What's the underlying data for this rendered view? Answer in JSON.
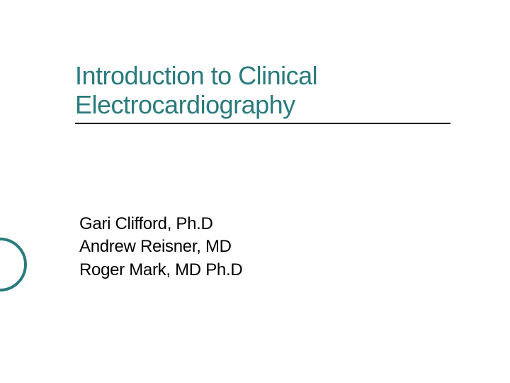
{
  "slide": {
    "title_line1": "Introduction to Clinical",
    "title_line2": "Electrocardiography",
    "title_color": "#2a7b7d",
    "title_fontsize": 36,
    "underline_color": "#000000",
    "authors": [
      "Gari Clifford, Ph.D",
      "Andrew Reisner, MD",
      "Roger Mark, MD Ph.D"
    ],
    "author_fontsize": 24,
    "author_color": "#000000",
    "bullet_ring_color": "#2a7b7d",
    "background_color": "#ffffff"
  }
}
